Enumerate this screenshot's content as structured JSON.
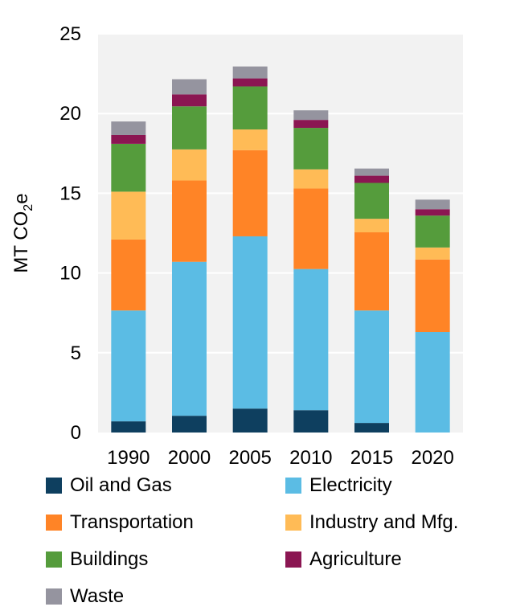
{
  "chart_data": {
    "type": "bar",
    "stacked": true,
    "categories": [
      "1990",
      "2000",
      "2005",
      "2010",
      "2015",
      "2020"
    ],
    "ylabel": "MT CO2e",
    "ylabel_parts": {
      "main": "MT CO",
      "sub": "2",
      "tail": "e"
    },
    "ylim": [
      0,
      25
    ],
    "yticks": [
      0,
      5,
      10,
      15,
      20,
      25
    ],
    "grid": true,
    "legend_position": "bottom",
    "series": [
      {
        "name": "Oil and Gas",
        "color": "#0E3F5F",
        "values": [
          0.7,
          1.05,
          1.5,
          1.4,
          0.6,
          0.0
        ]
      },
      {
        "name": "Electricity",
        "color": "#5BBCE4",
        "values": [
          6.95,
          9.65,
          10.8,
          8.85,
          7.05,
          6.3
        ]
      },
      {
        "name": "Transportation",
        "color": "#FF8426",
        "values": [
          4.45,
          5.1,
          5.4,
          5.05,
          4.9,
          4.55
        ]
      },
      {
        "name": "Industry and Mfg.",
        "color": "#FFBB56",
        "values": [
          3.0,
          1.95,
          1.3,
          1.2,
          0.85,
          0.75
        ]
      },
      {
        "name": "Buildings",
        "color": "#559C3C",
        "values": [
          3.0,
          2.7,
          2.7,
          2.6,
          2.25,
          2.0
        ]
      },
      {
        "name": "Agriculture",
        "color": "#8B1652",
        "values": [
          0.55,
          0.75,
          0.5,
          0.5,
          0.45,
          0.4
        ]
      },
      {
        "name": "Waste",
        "color": "#95949F",
        "values": [
          0.85,
          0.95,
          0.75,
          0.6,
          0.45,
          0.6
        ]
      }
    ]
  }
}
